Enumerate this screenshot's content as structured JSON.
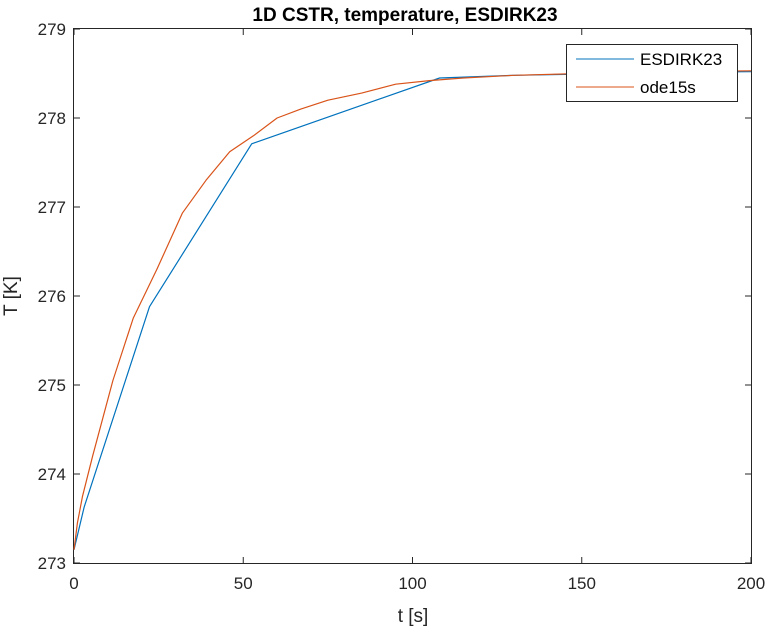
{
  "chart_data": {
    "type": "line",
    "title": "1D CSTR, temperature, ESDIRK23",
    "xlabel": "t [s]",
    "ylabel": "T [K]",
    "xlim": [
      0,
      200
    ],
    "ylim": [
      273,
      279
    ],
    "xticks": [
      0,
      50,
      100,
      150,
      200
    ],
    "yticks": [
      273,
      274,
      275,
      276,
      277,
      278,
      279
    ],
    "xtick_labels": [
      "0",
      "50",
      "100",
      "150",
      "200"
    ],
    "ytick_labels": [
      "273",
      "274",
      "275",
      "276",
      "277",
      "278",
      "279"
    ],
    "grid": false,
    "legend_position": "top-right",
    "series": [
      {
        "name": "ESDIRK23",
        "color": "#0072BD",
        "x": [
          0,
          3.0,
          22.3,
          52.5,
          108,
          130,
          145,
          165,
          200
        ],
        "y": [
          273.15,
          273.63,
          275.88,
          277.71,
          278.45,
          278.48,
          278.49,
          278.51,
          278.52
        ]
      },
      {
        "name": "ode15s",
        "color": "#D95319",
        "x": [
          0,
          1.0,
          2.5,
          5.5,
          11.5,
          17.5,
          24.5,
          32,
          39,
          46,
          53,
          60,
          67,
          75,
          85,
          95,
          105,
          115,
          130,
          150,
          175,
          200
        ],
        "y": [
          273.15,
          273.45,
          273.75,
          274.2,
          275.05,
          275.75,
          276.3,
          276.93,
          277.3,
          277.62,
          277.8,
          278.0,
          278.1,
          278.2,
          278.28,
          278.38,
          278.42,
          278.45,
          278.48,
          278.5,
          278.52,
          278.53
        ]
      }
    ]
  }
}
